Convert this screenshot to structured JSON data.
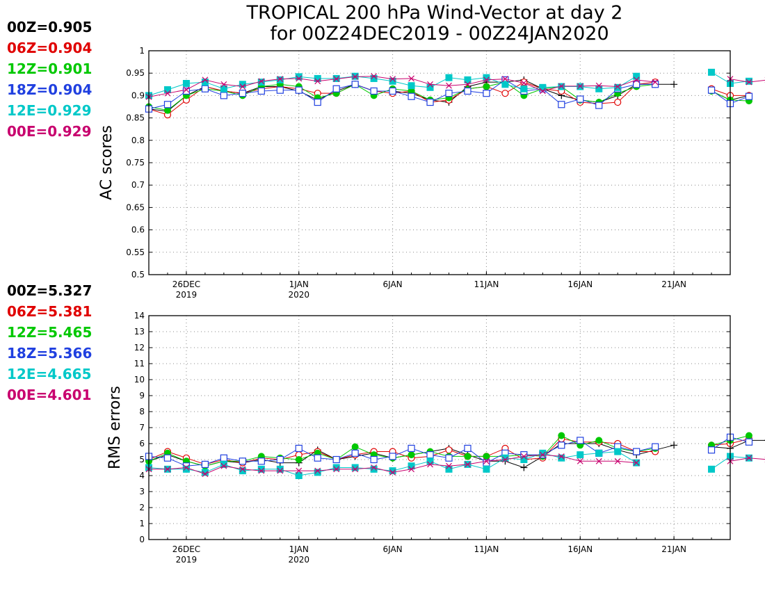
{
  "chart_title_line1": "TROPICAL 200 hPa Wind-Vector at day 2",
  "chart_title_line2": "for 00Z24DEC2019 - 00Z24JAN2020",
  "chart_data": [
    {
      "type": "line",
      "ylabel": "AC scores",
      "ylim": [
        0.5,
        1.0
      ],
      "yticks": [
        "0.5",
        "0.55",
        "0.6",
        "0.65",
        "0.7",
        "0.75",
        "0.8",
        "0.85",
        "0.9",
        "0.95",
        "1"
      ],
      "xlim": [
        "2019-12-24",
        "2020-01-24"
      ],
      "xticks": [
        {
          "date": "2019-12-26",
          "label": "26DEC",
          "sublabel": "2019"
        },
        {
          "date": "2020-01-01",
          "label": "1JAN",
          "sublabel": "2020"
        },
        {
          "date": "2020-01-06",
          "label": "6JAN",
          "sublabel": ""
        },
        {
          "date": "2020-01-11",
          "label": "11JAN",
          "sublabel": ""
        },
        {
          "date": "2020-01-16",
          "label": "16JAN",
          "sublabel": ""
        },
        {
          "date": "2020-01-21",
          "label": "21JAN",
          "sublabel": ""
        }
      ],
      "grid": true,
      "legend": [
        {
          "text": "00Z=0.905",
          "color": "#000000"
        },
        {
          "text": "06Z=0.904",
          "color": "#e00000"
        },
        {
          "text": "12Z=0.901",
          "color": "#00c800"
        },
        {
          "text": "18Z=0.904",
          "color": "#2040e0"
        },
        {
          "text": "12E=0.929",
          "color": "#00c8c8"
        },
        {
          "text": "00E=0.929",
          "color": "#c8006e"
        }
      ],
      "series": [
        {
          "name": "00Z",
          "color": "#000000",
          "marker": "plus",
          "start": "2019-12-24",
          "values": [
            0.87,
            0.865,
            0.9,
            0.92,
            0.91,
            0.905,
            0.92,
            0.92,
            0.91,
            0.89,
            0.91,
            0.925,
            0.91,
            0.91,
            0.905,
            0.89,
            0.885,
            0.92,
            0.93,
            0.93,
            0.935,
            0.915,
            0.9,
            0.89,
            0.885,
            0.9,
            0.925,
            0.925,
            0.925,
            null,
            0.91,
            0.89,
            0.9
          ]
        },
        {
          "name": "06Z",
          "color": "#e00000",
          "marker": "circle",
          "start": "2019-12-24",
          "values": [
            0.87,
            0.857,
            0.89,
            0.92,
            0.91,
            0.905,
            0.915,
            0.92,
            0.915,
            0.905,
            0.905,
            0.925,
            0.91,
            0.905,
            0.91,
            0.885,
            0.89,
            0.915,
            0.92,
            0.905,
            0.93,
            0.915,
            0.91,
            0.885,
            0.882,
            0.885,
            0.925,
            0.93,
            null,
            null,
            0.915,
            0.9,
            0.9
          ]
        },
        {
          "name": "12Z",
          "color": "#00c800",
          "marker": "dot",
          "start": "2019-12-24",
          "values": [
            0.875,
            0.867,
            0.9,
            0.915,
            0.91,
            0.9,
            0.92,
            0.925,
            0.92,
            0.895,
            0.905,
            0.925,
            0.9,
            0.915,
            0.91,
            0.89,
            0.895,
            0.915,
            0.92,
            0.93,
            0.9,
            0.915,
            0.92,
            0.89,
            0.885,
            0.905,
            0.92,
            0.925,
            null,
            null,
            0.91,
            0.89,
            0.888
          ]
        },
        {
          "name": "18Z",
          "color": "#2040e0",
          "marker": "square",
          "start": "2019-12-24",
          "values": [
            0.87,
            0.88,
            0.91,
            0.915,
            0.9,
            0.905,
            0.91,
            0.912,
            0.912,
            0.885,
            0.915,
            0.925,
            0.91,
            0.91,
            0.898,
            0.885,
            0.905,
            0.91,
            0.905,
            0.935,
            0.91,
            0.915,
            0.88,
            0.892,
            0.878,
            0.915,
            0.925,
            0.925,
            null,
            null,
            0.912,
            0.882,
            0.898
          ]
        },
        {
          "name": "12E",
          "color": "#00c8c8",
          "marker": "filled-square",
          "start": "2019-12-24",
          "values": [
            0.9,
            0.913,
            0.927,
            0.93,
            0.915,
            0.925,
            0.93,
            0.935,
            0.942,
            0.938,
            0.938,
            0.943,
            0.938,
            0.932,
            0.922,
            0.918,
            0.94,
            0.935,
            0.94,
            0.925,
            0.915,
            0.918,
            0.92,
            0.92,
            0.915,
            0.918,
            0.943,
            null,
            null,
            null,
            0.952,
            0.927,
            0.932
          ]
        },
        {
          "name": "00E",
          "color": "#c8006e",
          "marker": "cross",
          "start": "2019-12-24",
          "values": [
            0.897,
            0.905,
            0.913,
            0.935,
            0.925,
            0.92,
            0.932,
            0.937,
            0.938,
            0.932,
            0.937,
            0.942,
            0.943,
            0.937,
            0.938,
            0.925,
            0.922,
            0.925,
            0.935,
            0.937,
            0.928,
            0.91,
            0.921,
            0.921,
            0.922,
            0.92,
            0.935,
            0.93,
            null,
            null,
            null,
            0.937,
            0.93,
            0.935
          ]
        }
      ]
    },
    {
      "type": "line",
      "ylabel": "RMS errors",
      "ylim": [
        0,
        14
      ],
      "yticks": [
        "0",
        "1",
        "2",
        "3",
        "4",
        "5",
        "6",
        "7",
        "8",
        "9",
        "10",
        "11",
        "12",
        "13",
        "14"
      ],
      "xlim": [
        "2019-12-24",
        "2020-01-24"
      ],
      "xticks": [
        {
          "date": "2019-12-26",
          "label": "26DEC",
          "sublabel": "2019"
        },
        {
          "date": "2020-01-01",
          "label": "1JAN",
          "sublabel": "2020"
        },
        {
          "date": "2020-01-06",
          "label": "6JAN",
          "sublabel": ""
        },
        {
          "date": "2020-01-11",
          "label": "11JAN",
          "sublabel": ""
        },
        {
          "date": "2020-01-16",
          "label": "16JAN",
          "sublabel": ""
        },
        {
          "date": "2020-01-21",
          "label": "21JAN",
          "sublabel": ""
        }
      ],
      "grid": true,
      "legend": [
        {
          "text": "00Z=5.327",
          "color": "#000000"
        },
        {
          "text": "06Z=5.381",
          "color": "#e00000"
        },
        {
          "text": "12Z=5.465",
          "color": "#00c800"
        },
        {
          "text": "18Z=5.366",
          "color": "#2040e0"
        },
        {
          "text": "12E=4.665",
          "color": "#00c8c8"
        },
        {
          "text": "00E=4.601",
          "color": "#c8006e"
        }
      ],
      "series": [
        {
          "name": "00Z",
          "color": "#000000",
          "marker": "plus",
          "start": "2019-12-24",
          "values": [
            4.9,
            5.3,
            4.9,
            4.6,
            4.9,
            4.8,
            5.0,
            4.8,
            4.8,
            5.6,
            5.0,
            5.2,
            5.4,
            5.1,
            5.3,
            5.5,
            5.7,
            5.3,
            4.9,
            4.9,
            4.5,
            5.2,
            6.0,
            6.0,
            6.0,
            5.6,
            5.3,
            5.6,
            5.9,
            null,
            5.8,
            5.7,
            6.2,
            6.2
          ]
        },
        {
          "name": "06Z",
          "color": "#e00000",
          "marker": "circle",
          "start": "2019-12-24",
          "values": [
            5.0,
            5.5,
            5.1,
            4.7,
            5.0,
            4.8,
            5.1,
            5.0,
            5.3,
            5.5,
            5.0,
            5.3,
            5.5,
            5.5,
            5.1,
            5.2,
            5.6,
            5.2,
            5.2,
            5.7,
            5.0,
            5.1,
            6.3,
            6.1,
            6.1,
            6.0,
            5.5,
            5.5,
            null,
            null,
            5.9,
            6.0,
            6.3
          ]
        },
        {
          "name": "12Z",
          "color": "#00c800",
          "marker": "dot",
          "start": "2019-12-24",
          "values": [
            4.9,
            5.4,
            4.9,
            4.6,
            4.9,
            4.9,
            5.2,
            5.1,
            5.0,
            5.4,
            5.0,
            5.8,
            5.3,
            5.1,
            5.3,
            5.5,
            5.2,
            5.2,
            5.2,
            5.2,
            5.3,
            5.2,
            6.5,
            5.9,
            6.2,
            5.7,
            5.5,
            5.7,
            null,
            null,
            5.9,
            6.2,
            6.5
          ]
        },
        {
          "name": "18Z",
          "color": "#2040e0",
          "marker": "square",
          "start": "2019-12-24",
          "values": [
            5.2,
            5.1,
            4.6,
            4.7,
            5.1,
            4.9,
            4.9,
            5.0,
            5.7,
            5.1,
            5.0,
            5.4,
            5.0,
            5.2,
            5.7,
            5.3,
            5.1,
            5.7,
            4.8,
            5.4,
            5.3,
            5.3,
            5.9,
            6.2,
            5.4,
            5.8,
            5.5,
            5.8,
            null,
            null,
            5.6,
            6.4,
            6.1
          ]
        },
        {
          "name": "12E",
          "color": "#00c8c8",
          "marker": "filled-square",
          "start": "2019-12-24",
          "values": [
            4.5,
            4.4,
            4.4,
            4.2,
            4.7,
            4.3,
            4.4,
            4.4,
            4.0,
            4.2,
            4.5,
            4.5,
            4.4,
            4.3,
            4.6,
            4.9,
            4.4,
            4.7,
            4.4,
            5.1,
            5.0,
            5.4,
            5.1,
            5.3,
            5.4,
            5.5,
            4.8,
            null,
            null,
            null,
            4.4,
            5.2,
            5.1
          ]
        },
        {
          "name": "00E",
          "color": "#c8006e",
          "marker": "cross",
          "start": "2019-12-24",
          "values": [
            4.4,
            4.4,
            4.5,
            4.1,
            4.6,
            4.4,
            4.3,
            4.3,
            4.3,
            4.3,
            4.4,
            4.4,
            4.5,
            4.2,
            4.4,
            4.7,
            4.6,
            4.7,
            4.9,
            5.0,
            5.2,
            5.3,
            5.2,
            4.9,
            4.9,
            4.9,
            4.8,
            null,
            null,
            null,
            null,
            4.9,
            5.1,
            5.0
          ]
        }
      ]
    }
  ]
}
